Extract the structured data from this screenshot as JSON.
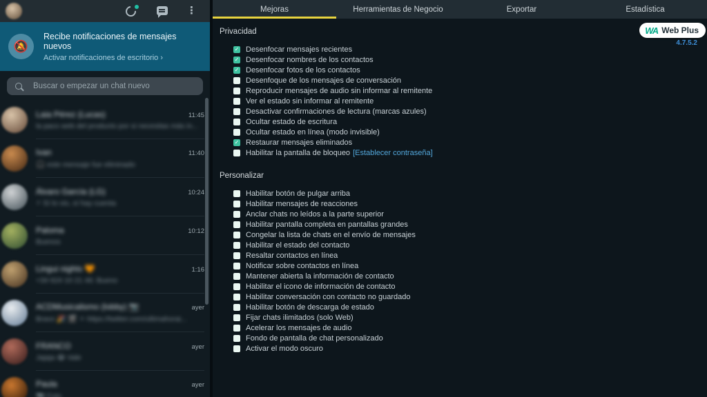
{
  "left_panel": {
    "topbar": {
      "icons": [
        "status-icon",
        "new-chat-icon",
        "menu-icon"
      ]
    },
    "notification": {
      "title": "Recibe notificaciones de mensajes nuevos",
      "subtitle": "Activar notificaciones de escritorio ›"
    },
    "search": {
      "placeholder": "Buscar o empezar un chat nuevo"
    },
    "chats": [
      {
        "name": "Laia Pérez (Lucas)",
        "preview": "la paco web del producto por si necesitas más in...",
        "time": "11:45",
        "blurred": true,
        "avatar": [
          "#d8c3a8",
          "#7d6350"
        ]
      },
      {
        "name": "Ivan",
        "preview": "🎧 este mensaje fue eliminado",
        "time": "11:40",
        "blurred": true,
        "avatar": [
          "#c98a4e",
          "#5e3c20"
        ]
      },
      {
        "name": "Álvaro García (LG)",
        "preview": "⚡ Sí lo vio, sí hay cuenta",
        "time": "10:24",
        "blurred": true,
        "avatar": [
          "#cfd2d4",
          "#5f6a70"
        ]
      },
      {
        "name": "Paloma",
        "preview": "Buenos",
        "time": "10:12",
        "blurred": true,
        "avatar": [
          "#a3b060",
          "#46603a"
        ]
      },
      {
        "name": "Lingui nights 🧡",
        "preview": "+34 624 10 21 46: Bueno",
        "time": "1:16",
        "blurred": true,
        "avatar": [
          "#bfa06f",
          "#5e4830"
        ]
      },
      {
        "name": "ACDMusicalismo (lobby) 📷",
        "preview": "Bravo 🎉 🎬 ⚪ https://twitter.com/ultimahorai...",
        "time": "ayer",
        "blurred": true,
        "avatar": [
          "#e8ecef",
          "#7f93a8"
        ]
      },
      {
        "name": "FRANCO",
        "preview": "Jajaja 😂 Vale",
        "time": "ayer",
        "blurred": true,
        "avatar": [
          "#b06a5a",
          "#4f2c28"
        ]
      },
      {
        "name": "Paula",
        "preview": "📷 Foto",
        "time": "ayer",
        "blurred": true,
        "avatar": [
          "#c9772f",
          "#4a2a10"
        ]
      }
    ]
  },
  "right_panel": {
    "tabs": [
      {
        "label": "Mejoras",
        "active": true
      },
      {
        "label": "Herramientas de Negocio",
        "active": false
      },
      {
        "label": "Exportar",
        "active": false
      },
      {
        "label": "Estadística",
        "active": false
      }
    ],
    "badge": {
      "logo": "WA",
      "label": "Web Plus",
      "version": "4.7.5.2"
    },
    "sections": [
      {
        "title": "Privacidad",
        "items": [
          {
            "label": "Desenfocar mensajes recientes",
            "checked": true
          },
          {
            "label": "Desenfocar nombres de los contactos",
            "checked": true
          },
          {
            "label": "Desenfocar fotos de los contactos",
            "checked": true
          },
          {
            "label": "Desenfoque de los mensajes de conversación",
            "checked": false
          },
          {
            "label": "Reproducir mensajes de audio sin informar al remitente",
            "checked": false
          },
          {
            "label": "Ver el estado sin informar al remitente",
            "checked": false
          },
          {
            "label": "Desactivar confirmaciones de lectura (marcas azules)",
            "checked": false
          },
          {
            "label": "Ocultar estado de escritura",
            "checked": false
          },
          {
            "label": "Ocultar estado en línea (modo invisible)",
            "checked": false
          },
          {
            "label": "Restaurar mensajes eliminados",
            "checked": true
          },
          {
            "label": "Habilitar la pantalla de bloqueo",
            "checked": false,
            "link": "[Establecer contraseña]"
          }
        ]
      },
      {
        "title": "Personalizar",
        "items": [
          {
            "label": "Habilitar botón de pulgar arriba",
            "checked": false
          },
          {
            "label": "Habilitar mensajes de reacciones",
            "checked": false
          },
          {
            "label": "Anclar chats no leídos a la parte superior",
            "checked": false
          },
          {
            "label": "Habilitar pantalla completa en pantallas grandes",
            "checked": false
          },
          {
            "label": "Congelar la lista de chats en el envío de mensajes",
            "checked": false
          },
          {
            "label": "Habilitar el estado del contacto",
            "checked": false
          },
          {
            "label": "Resaltar contactos en línea",
            "checked": false
          },
          {
            "label": "Notificar sobre contactos en línea",
            "checked": false
          },
          {
            "label": "Mantener abierta la información de contacto",
            "checked": false
          },
          {
            "label": "Habilitar el icono de información de contacto",
            "checked": false
          },
          {
            "label": "Habilitar conversación con contacto no guardado",
            "checked": false
          },
          {
            "label": "Habilitar botón de descarga de estado",
            "checked": false
          },
          {
            "label": "Fijar chats ilimitados (solo Web)",
            "checked": false
          },
          {
            "label": "Acelerar los mensajes de audio",
            "checked": false
          },
          {
            "label": "Fondo de pantalla de chat personalizado",
            "checked": false
          },
          {
            "label": "Activar el modo oscuro",
            "checked": false
          }
        ]
      }
    ]
  },
  "colors": {
    "left_bg": "#111b21",
    "topbar_bg": "#232d33",
    "banner_bg": "#0f5a77",
    "right_bg": "#0d161c",
    "tabbar_bg": "#222d34",
    "active_tab_underline": "#e8d43f",
    "checkbox_checked": "#3fc3a1",
    "checkbox_unchecked": "#eaf7f2",
    "link_blue": "#53a8dc",
    "version_blue": "#3e8fd8",
    "wa_logo_teal": "#00a887"
  }
}
